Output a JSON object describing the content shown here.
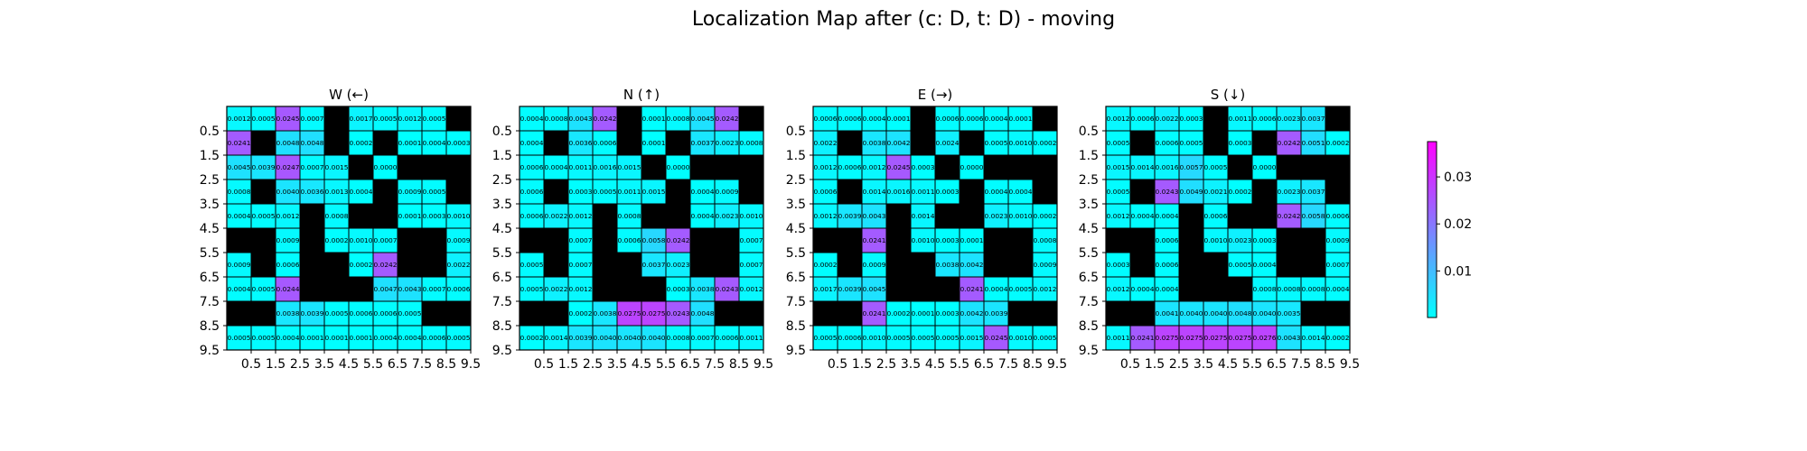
{
  "title": "Localization Map after (c: D, t: D) - moving",
  "colors": {
    "wall": "#000000",
    "cell_stroke": "#000000",
    "cmap_low": "#00ffff",
    "cmap_high": "#ff00ff"
  },
  "chart_data": {
    "type": "heatmap",
    "colormap": "cool",
    "vmin": 0.0001,
    "vmax": 0.0375,
    "colorbar": {
      "ticks": [
        0.01,
        0.02,
        0.03
      ],
      "tick_labels": [
        "0.01",
        "0.02",
        "0.03"
      ]
    },
    "tick_labels": [
      "0.5",
      "1.5",
      "2.5",
      "3.5",
      "4.5",
      "5.5",
      "6.5",
      "7.5",
      "8.5",
      "9.5"
    ],
    "wall_value": null,
    "panels": [
      {
        "title": "W (←)",
        "grid": [
          [
            "0.0012",
            "0.0005",
            "0.0245",
            "0.0007",
            null,
            "0.0017",
            "0.0005",
            "0.0012",
            "0.0005",
            null
          ],
          [
            "0.0241",
            null,
            "0.0048",
            "0.0048",
            null,
            "0.0002",
            null,
            "0.0001",
            "0.0004",
            "0.0003"
          ],
          [
            "0.0045",
            "0.0039",
            "0.0247",
            "0.0007",
            "0.0015",
            null,
            "0.0000",
            null,
            null,
            null
          ],
          [
            "0.0008",
            null,
            "0.0040",
            "0.0036",
            "0.0013",
            "0.0004",
            null,
            "0.0009",
            "0.0005",
            null
          ],
          [
            "0.0004",
            "0.0005",
            "0.0012",
            null,
            "0.0008",
            null,
            null,
            "0.0001",
            "0.0003",
            "0.0010"
          ],
          [
            null,
            null,
            "0.0009",
            null,
            "0.0002",
            "0.0010",
            "0.0007",
            null,
            null,
            "0.0009"
          ],
          [
            "0.0009",
            null,
            "0.0006",
            null,
            null,
            "0.0002",
            "0.0242",
            null,
            null,
            "0.0022"
          ],
          [
            "0.0004",
            "0.0005",
            "0.0244",
            null,
            null,
            null,
            "0.0047",
            "0.0043",
            "0.0007",
            "0.0006"
          ],
          [
            null,
            null,
            "0.0038",
            "0.0039",
            "0.0005",
            "0.0006",
            "0.0006",
            "0.0005",
            null,
            null
          ],
          [
            "0.0005",
            "0.0005",
            "0.0004",
            "0.0001",
            "0.0001",
            "0.0001",
            "0.0004",
            "0.0004",
            "0.0006",
            "0.0005"
          ]
        ]
      },
      {
        "title": "N (↑)",
        "grid": [
          [
            "0.0004",
            "0.0008",
            "0.0043",
            "0.0242",
            null,
            "0.0001",
            "0.0008",
            "0.0045",
            "0.0242",
            null
          ],
          [
            "0.0004",
            null,
            "0.0036",
            "0.0006",
            null,
            "0.0001",
            null,
            "0.0037",
            "0.0023",
            "0.0008"
          ],
          [
            "0.0006",
            "0.0004",
            "0.0011",
            "0.0016",
            "0.0015",
            null,
            "0.0000",
            null,
            null,
            null
          ],
          [
            "0.0006",
            null,
            "0.0003",
            "0.0005",
            "0.0011",
            "0.0015",
            null,
            "0.0004",
            "0.0009",
            null
          ],
          [
            "0.0006",
            "0.0022",
            "0.0012",
            null,
            "0.0008",
            null,
            null,
            "0.0004",
            "0.0023",
            "0.0010"
          ],
          [
            null,
            null,
            "0.0007",
            null,
            "0.0006",
            "0.0058",
            "0.0242",
            null,
            null,
            "0.0007"
          ],
          [
            "0.0005",
            null,
            "0.0007",
            null,
            null,
            "0.0037",
            "0.0023",
            null,
            null,
            "0.0007"
          ],
          [
            "0.0005",
            "0.0022",
            "0.0012",
            null,
            null,
            null,
            "0.0003",
            "0.0038",
            "0.0243",
            "0.0012"
          ],
          [
            null,
            null,
            "0.0002",
            "0.0038",
            "0.0275",
            "0.0275",
            "0.0243",
            "0.0048",
            null,
            null
          ],
          [
            "0.0002",
            "0.0014",
            "0.0039",
            "0.0040",
            "0.0040",
            "0.0040",
            "0.0008",
            "0.0007",
            "0.0006",
            "0.0011"
          ]
        ]
      },
      {
        "title": "E (→)",
        "grid": [
          [
            "0.0006",
            "0.0006",
            "0.0004",
            "0.0001",
            null,
            "0.0006",
            "0.0006",
            "0.0004",
            "0.0001",
            null
          ],
          [
            "0.0022",
            null,
            "0.0038",
            "0.0042",
            null,
            "0.0024",
            null,
            "0.0005",
            "0.0010",
            "0.0002"
          ],
          [
            "0.0012",
            "0.0006",
            "0.0012",
            "0.0245",
            "0.0003",
            null,
            "0.0000",
            null,
            null,
            null
          ],
          [
            "0.0006",
            null,
            "0.0014",
            "0.0016",
            "0.0011",
            "0.0003",
            null,
            "0.0004",
            "0.0004",
            null
          ],
          [
            "0.0012",
            "0.0039",
            "0.0043",
            null,
            "0.0014",
            null,
            null,
            "0.0023",
            "0.0010",
            "0.0002"
          ],
          [
            null,
            null,
            "0.0241",
            null,
            "0.0010",
            "0.0003",
            "0.0001",
            null,
            null,
            "0.0008"
          ],
          [
            "0.0002",
            null,
            "0.0009",
            null,
            null,
            "0.0038",
            "0.0042",
            null,
            null,
            "0.0009"
          ],
          [
            "0.0017",
            "0.0039",
            "0.0045",
            null,
            null,
            null,
            "0.0241",
            "0.0004",
            "0.0005",
            "0.0012"
          ],
          [
            null,
            null,
            "0.0241",
            "0.0002",
            "0.0001",
            "0.0003",
            "0.0042",
            "0.0039",
            null,
            null
          ],
          [
            "0.0005",
            "0.0006",
            "0.0010",
            "0.0005",
            "0.0005",
            "0.0005",
            "0.0015",
            "0.0245",
            "0.0010",
            "0.0005"
          ]
        ]
      },
      {
        "title": "S (↓)",
        "grid": [
          [
            "0.0012",
            "0.0006",
            "0.0022",
            "0.0003",
            null,
            "0.0011",
            "0.0006",
            "0.0023",
            "0.0037",
            null
          ],
          [
            "0.0005",
            null,
            "0.0006",
            "0.0005",
            null,
            "0.0003",
            null,
            "0.0242",
            "0.0051",
            "0.0002"
          ],
          [
            "0.0015",
            "0.0014",
            "0.0016",
            "0.0057",
            "0.0005",
            null,
            "0.0000",
            null,
            null,
            null
          ],
          [
            "0.0005",
            null,
            "0.0243",
            "0.0049",
            "0.0021",
            "0.0002",
            null,
            "0.0023",
            "0.0037",
            null
          ],
          [
            "0.0012",
            "0.0004",
            "0.0004",
            null,
            "0.0006",
            null,
            null,
            "0.0242",
            "0.0058",
            "0.0006"
          ],
          [
            null,
            null,
            "0.0006",
            null,
            "0.0010",
            "0.0023",
            "0.0003",
            null,
            null,
            "0.0009"
          ],
          [
            "0.0003",
            null,
            "0.0006",
            null,
            null,
            "0.0005",
            "0.0004",
            null,
            null,
            "0.0007"
          ],
          [
            "0.0012",
            "0.0004",
            "0.0004",
            null,
            null,
            null,
            "0.0008",
            "0.0008",
            "0.0008",
            "0.0004"
          ],
          [
            null,
            null,
            "0.0041",
            "0.0040",
            "0.0040",
            "0.0048",
            "0.0040",
            "0.0035",
            null,
            null
          ],
          [
            "0.0011",
            "0.0241",
            "0.0275",
            "0.0275",
            "0.0275",
            "0.0275",
            "0.0276",
            "0.0043",
            "0.0014",
            "0.0002"
          ]
        ]
      }
    ]
  }
}
